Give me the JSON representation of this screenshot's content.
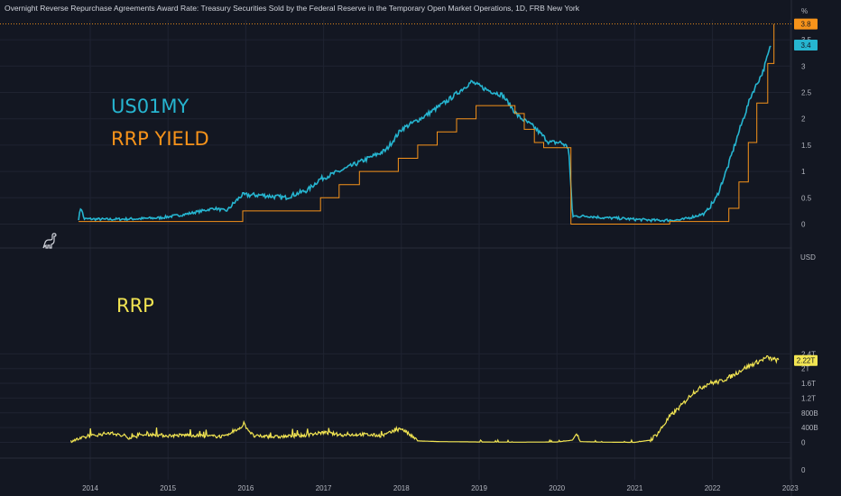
{
  "title": "Overnight Reverse Repurchase Agreements Award Rate: Treasury Securities Sold by the Federal Reserve in the Temporary Open Market Operations, 1D, FRB New York",
  "colors": {
    "background": "#131722",
    "grid": "#1f2331",
    "us01my": "#26b5d0",
    "rrp_yield": "#f7931a",
    "rrp": "#f2e552"
  },
  "annotations": {
    "us01my": "US01MY",
    "rrp_yield": "RRP YIELD",
    "rrp": "RRP"
  },
  "icons": {
    "logo": "dinosaur-icon"
  },
  "chart_data": [
    {
      "type": "line",
      "pane": "top",
      "unit": "%",
      "x_ticks": [
        "2014",
        "2015",
        "2016",
        "2017",
        "2018",
        "2019",
        "2020",
        "2021",
        "2022",
        "2023"
      ],
      "y_ticks": [
        "3.5",
        "3",
        "2.5",
        "2",
        "1.5",
        "1",
        "0.5",
        "0"
      ],
      "ylim": [
        -0.2,
        3.95
      ],
      "last_value_labels": [
        {
          "series": "RRP YIELD",
          "label": "3.8"
        },
        {
          "series": "US01MY",
          "label": "3.4"
        }
      ],
      "series": [
        {
          "name": "US01MY",
          "points": [
            [
              2013.85,
              0.1
            ],
            [
              2013.88,
              0.33
            ],
            [
              2013.92,
              0.1
            ],
            [
              2014.2,
              0.09
            ],
            [
              2014.6,
              0.1
            ],
            [
              2014.9,
              0.12
            ],
            [
              2015.2,
              0.18
            ],
            [
              2015.6,
              0.3
            ],
            [
              2015.75,
              0.25
            ],
            [
              2015.95,
              0.55
            ],
            [
              2016.2,
              0.55
            ],
            [
              2016.5,
              0.5
            ],
            [
              2016.8,
              0.65
            ],
            [
              2016.95,
              0.85
            ],
            [
              2017.2,
              1.0
            ],
            [
              2017.5,
              1.2
            ],
            [
              2017.8,
              1.4
            ],
            [
              2018.0,
              1.8
            ],
            [
              2018.3,
              2.05
            ],
            [
              2018.6,
              2.35
            ],
            [
              2018.9,
              2.7
            ],
            [
              2019.1,
              2.55
            ],
            [
              2019.3,
              2.45
            ],
            [
              2019.5,
              2.05
            ],
            [
              2019.7,
              1.85
            ],
            [
              2019.9,
              1.55
            ],
            [
              2020.05,
              1.55
            ],
            [
              2020.15,
              1.45
            ],
            [
              2020.2,
              0.15
            ],
            [
              2020.4,
              0.15
            ],
            [
              2020.6,
              0.12
            ],
            [
              2020.8,
              0.11
            ],
            [
              2021.0,
              0.09
            ],
            [
              2021.3,
              0.07
            ],
            [
              2021.6,
              0.08
            ],
            [
              2021.9,
              0.2
            ],
            [
              2022.05,
              0.5
            ],
            [
              2022.2,
              1.1
            ],
            [
              2022.35,
              1.8
            ],
            [
              2022.5,
              2.45
            ],
            [
              2022.65,
              2.9
            ],
            [
              2022.75,
              3.4
            ]
          ]
        },
        {
          "name": "RRP YIELD",
          "points": [
            [
              2013.85,
              0.05
            ],
            [
              2015.96,
              0.05
            ],
            [
              2015.96,
              0.25
            ],
            [
              2016.96,
              0.25
            ],
            [
              2016.96,
              0.5
            ],
            [
              2017.2,
              0.5
            ],
            [
              2017.2,
              0.75
            ],
            [
              2017.46,
              0.75
            ],
            [
              2017.46,
              1.0
            ],
            [
              2017.96,
              1.0
            ],
            [
              2017.96,
              1.25
            ],
            [
              2018.21,
              1.25
            ],
            [
              2018.21,
              1.5
            ],
            [
              2018.46,
              1.5
            ],
            [
              2018.46,
              1.75
            ],
            [
              2018.71,
              1.75
            ],
            [
              2018.71,
              2.0
            ],
            [
              2018.96,
              2.0
            ],
            [
              2018.96,
              2.25
            ],
            [
              2019.46,
              2.25
            ],
            [
              2019.46,
              2.1
            ],
            [
              2019.58,
              2.1
            ],
            [
              2019.58,
              1.8
            ],
            [
              2019.71,
              1.8
            ],
            [
              2019.71,
              1.55
            ],
            [
              2019.83,
              1.55
            ],
            [
              2019.83,
              1.45
            ],
            [
              2020.18,
              1.45
            ],
            [
              2020.18,
              0.0
            ],
            [
              2021.45,
              0.0
            ],
            [
              2021.45,
              0.05
            ],
            [
              2022.21,
              0.05
            ],
            [
              2022.21,
              0.3
            ],
            [
              2022.34,
              0.3
            ],
            [
              2022.34,
              0.8
            ],
            [
              2022.46,
              0.8
            ],
            [
              2022.46,
              1.55
            ],
            [
              2022.57,
              1.55
            ],
            [
              2022.57,
              2.3
            ],
            [
              2022.71,
              2.3
            ],
            [
              2022.71,
              3.05
            ],
            [
              2022.79,
              3.05
            ],
            [
              2022.79,
              3.8
            ]
          ]
        }
      ]
    },
    {
      "type": "line",
      "pane": "bottom",
      "unit": "USD",
      "y_ticks": [
        "2.4T",
        "2T",
        "1.6T",
        "1.2T",
        "800B",
        "400B",
        "0"
      ],
      "ylim": [
        -150,
        2650
      ],
      "last_value_labels": [
        {
          "series": "RRP",
          "label": "2.22T"
        }
      ],
      "series": [
        {
          "name": "RRP",
          "points": [
            [
              2013.75,
              20
            ],
            [
              2014.0,
              150
            ],
            [
              2014.25,
              240
            ],
            [
              2014.5,
              110
            ],
            [
              2014.75,
              200
            ],
            [
              2015.0,
              160
            ],
            [
              2015.25,
              180
            ],
            [
              2015.5,
              150
            ],
            [
              2015.75,
              140
            ],
            [
              2015.98,
              460
            ],
            [
              2016.1,
              150
            ],
            [
              2016.4,
              130
            ],
            [
              2016.75,
              170
            ],
            [
              2017.0,
              250
            ],
            [
              2017.25,
              180
            ],
            [
              2017.5,
              200
            ],
            [
              2017.75,
              160
            ],
            [
              2018.0,
              360
            ],
            [
              2018.2,
              40
            ],
            [
              2018.5,
              20
            ],
            [
              2018.8,
              15
            ],
            [
              2019.0,
              10
            ],
            [
              2019.5,
              5
            ],
            [
              2020.0,
              10
            ],
            [
              2020.2,
              60
            ],
            [
              2020.25,
              230
            ],
            [
              2020.3,
              20
            ],
            [
              2020.6,
              5
            ],
            [
              2021.0,
              0
            ],
            [
              2021.2,
              60
            ],
            [
              2021.3,
              250
            ],
            [
              2021.45,
              700
            ],
            [
              2021.6,
              1000
            ],
            [
              2021.75,
              1350
            ],
            [
              2021.95,
              1600
            ],
            [
              2022.1,
              1650
            ],
            [
              2022.25,
              1800
            ],
            [
              2022.4,
              2000
            ],
            [
              2022.55,
              2150
            ],
            [
              2022.65,
              2250
            ],
            [
              2022.7,
              2300
            ],
            [
              2022.78,
              2250
            ],
            [
              2022.85,
              2220
            ]
          ]
        }
      ]
    }
  ]
}
